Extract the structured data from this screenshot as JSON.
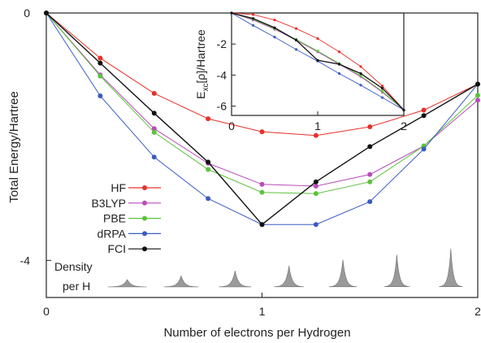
{
  "chart_data": [
    {
      "id": "main",
      "type": "line",
      "xlabel": "Number of electrons per Hydrogen",
      "ylabel": "Total Energy/Hartree",
      "xlim": [
        0,
        2
      ],
      "ylim": [
        -4.6,
        0
      ],
      "x_ticks": [
        0,
        1,
        2
      ],
      "x_tick_labels": [
        "0",
        "1",
        "2"
      ],
      "y_ticks": [
        0,
        -4
      ],
      "y_tick_labels": [
        "0",
        "-4"
      ],
      "grid": false,
      "legend_position": "left",
      "x": [
        0,
        0.25,
        0.5,
        0.75,
        1,
        1.25,
        1.5,
        1.75,
        2
      ],
      "series": [
        {
          "name": "HF",
          "color": "#e8302a",
          "values": [
            0,
            -0.73,
            -1.3,
            -1.71,
            -1.92,
            -1.98,
            -1.84,
            -1.57,
            -1.15
          ]
        },
        {
          "name": "B3LYP",
          "color": "#b84db8",
          "values": [
            0,
            -1.0,
            -1.87,
            -2.43,
            -2.77,
            -2.8,
            -2.61,
            -2.15,
            -1.41
          ]
        },
        {
          "name": "PBE",
          "color": "#5cc23c",
          "values": [
            0,
            -1.02,
            -1.93,
            -2.53,
            -2.9,
            -2.92,
            -2.73,
            -2.15,
            -1.33
          ]
        },
        {
          "name": "dRPA",
          "color": "#3b5bc2",
          "values": [
            0,
            -1.34,
            -2.33,
            -3.0,
            -3.42,
            -3.42,
            -3.05,
            -2.2,
            -1.15
          ]
        },
        {
          "name": "FCI",
          "color": "#111111",
          "values": [
            0,
            -0.81,
            -1.62,
            -2.41,
            -3.42,
            -2.73,
            -2.16,
            -1.66,
            -1.15
          ]
        }
      ]
    },
    {
      "id": "inset",
      "type": "line",
      "xlabel": "",
      "ylabel": "E_xc[ρ]/Hartree",
      "ylabel_parts": {
        "main": "E",
        "sub": "xc",
        "rest": "[ρ]/Hartree"
      },
      "xlim": [
        0,
        2
      ],
      "ylim": [
        -6.6,
        0
      ],
      "x_ticks": [
        0,
        1,
        2
      ],
      "x_tick_labels": [
        "0",
        "1",
        "2"
      ],
      "y_ticks": [
        -2,
        -4,
        -6
      ],
      "y_tick_labels": [
        "-2",
        "-4",
        "-6"
      ],
      "grid": false,
      "x": [
        0,
        0.25,
        0.5,
        0.75,
        1,
        1.25,
        1.5,
        1.75,
        2
      ],
      "series": [
        {
          "name": "HF",
          "color": "#e8302a",
          "values": [
            0,
            -0.1,
            -0.45,
            -1.0,
            -1.65,
            -2.5,
            -3.45,
            -4.7,
            -6.25
          ]
        },
        {
          "name": "B3LYP",
          "color": "#b84db8",
          "values": [
            0,
            -0.45,
            -1.05,
            -1.75,
            -2.5,
            -3.3,
            -4.1,
            -5.1,
            -6.25
          ]
        },
        {
          "name": "PBE",
          "color": "#5cc23c",
          "values": [
            0,
            -0.4,
            -1.0,
            -1.7,
            -2.45,
            -3.25,
            -4.05,
            -5.05,
            -6.25
          ]
        },
        {
          "name": "dRPA",
          "color": "#3b5bc2",
          "values": [
            0,
            -0.8,
            -1.55,
            -2.35,
            -3.1,
            -3.9,
            -4.65,
            -5.45,
            -6.25
          ]
        },
        {
          "name": "FCI",
          "color": "#111111",
          "values": [
            0,
            -0.35,
            -0.95,
            -1.75,
            -3.05,
            -3.3,
            -3.9,
            -4.85,
            -6.25
          ]
        }
      ]
    }
  ],
  "density_label": [
    "Density",
    "per H"
  ],
  "density_peaks": [
    {
      "x": 0.375,
      "height": 0.12,
      "width": 0.09
    },
    {
      "x": 0.625,
      "height": 0.18,
      "width": 0.08
    },
    {
      "x": 0.875,
      "height": 0.26,
      "width": 0.075
    },
    {
      "x": 1.125,
      "height": 0.34,
      "width": 0.07
    },
    {
      "x": 1.375,
      "height": 0.44,
      "width": 0.065
    },
    {
      "x": 1.625,
      "height": 0.52,
      "width": 0.06
    },
    {
      "x": 1.875,
      "height": 0.62,
      "width": 0.055
    }
  ],
  "colors": {
    "axis": "#222222",
    "density_fill": "#9a9a9a"
  }
}
